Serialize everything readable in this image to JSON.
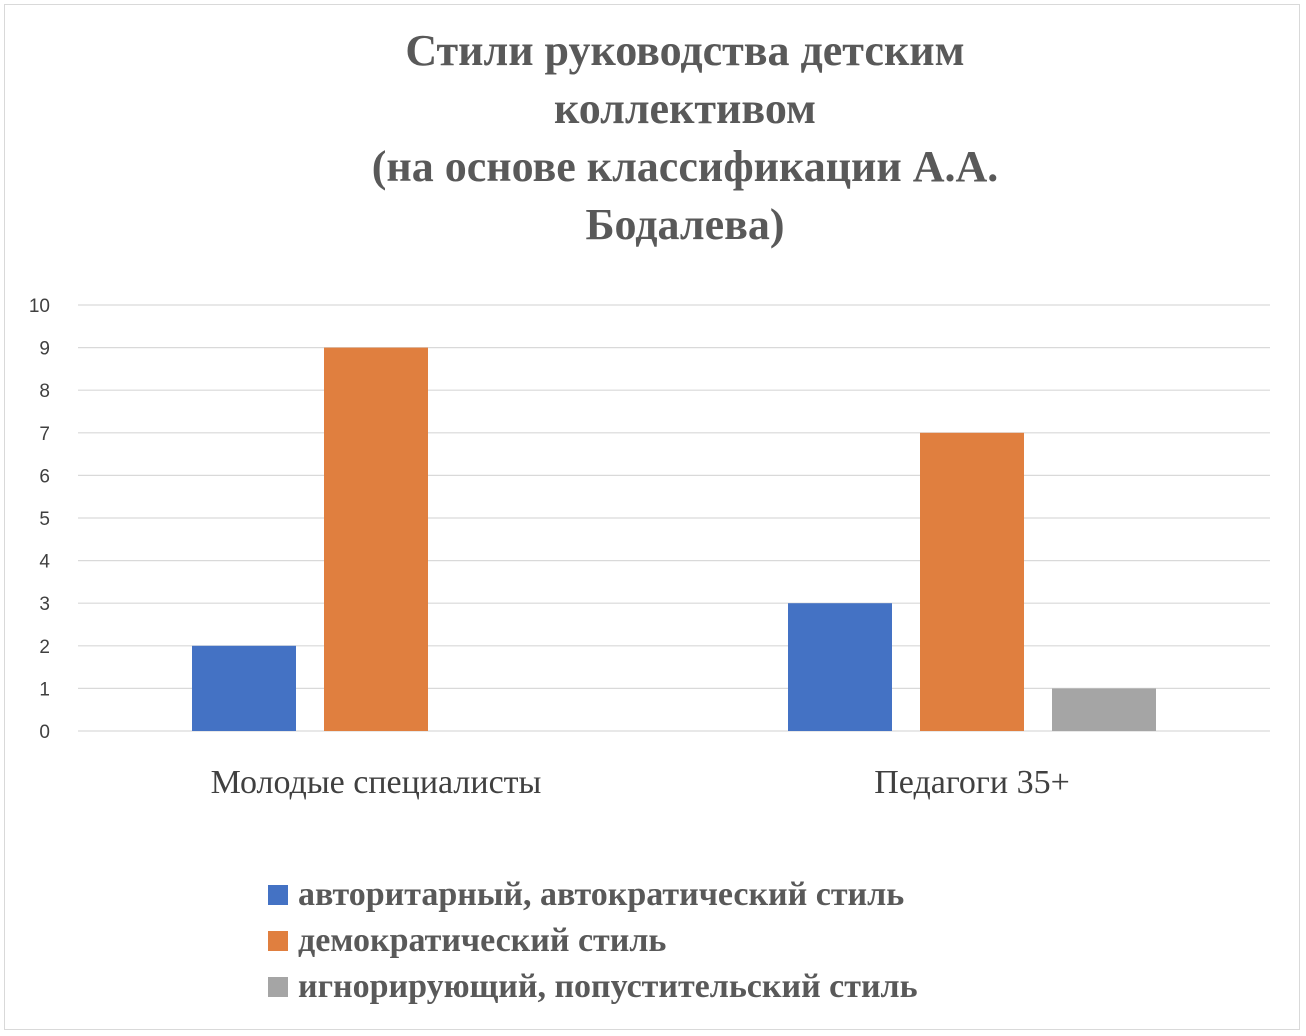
{
  "chart_data": {
    "type": "bar",
    "title_lines": [
      "Стили руководства детским",
      "коллективом",
      "(на основе классификации А.А.",
      "Бодалева)"
    ],
    "categories": [
      "Молодые специалисты",
      "Педагоги 35+"
    ],
    "series": [
      {
        "name": "авторитарный, автократический стиль",
        "values": [
          2,
          3
        ],
        "color": "#4472c4"
      },
      {
        "name": "демократический стиль",
        "values": [
          9,
          7
        ],
        "color": "#e07f3f"
      },
      {
        "name": "игнорирующий, попустительский стиль",
        "values": [
          0,
          1
        ],
        "color": "#a5a5a5"
      }
    ],
    "ylim": [
      0,
      10
    ],
    "yticks": [
      0,
      1,
      2,
      3,
      4,
      5,
      6,
      7,
      8,
      9,
      10
    ],
    "grid": true,
    "legend_position": "bottom"
  }
}
